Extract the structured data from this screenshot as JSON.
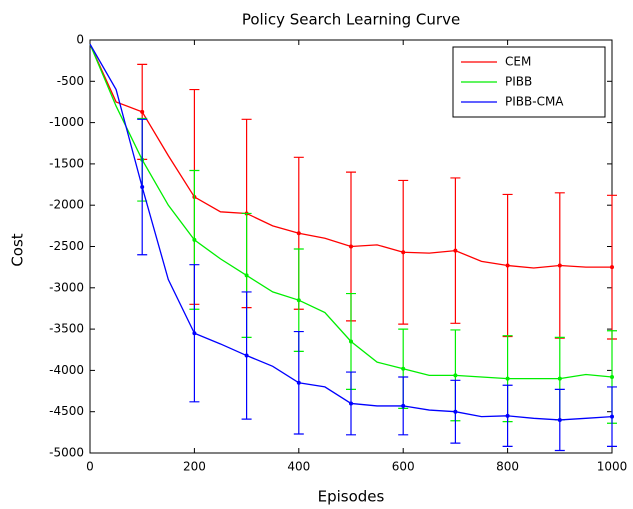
{
  "chart_data": {
    "type": "line",
    "title": "Policy Search Learning Curve",
    "x_label": "Episodes",
    "y_label": "Cost",
    "x": [
      0,
      50,
      100,
      150,
      200,
      250,
      300,
      350,
      400,
      450,
      500,
      550,
      600,
      650,
      700,
      750,
      800,
      850,
      900,
      950,
      1000
    ],
    "series": [
      {
        "name": "CEM",
        "color": "#ff0000",
        "values": [
          -50,
          -750,
          -870,
          -1400,
          -1900,
          -2080,
          -2100,
          -2250,
          -2340,
          -2400,
          -2500,
          -2480,
          -2570,
          -2580,
          -2550,
          -2680,
          -2730,
          -2760,
          -2730,
          -2750,
          -2750
        ],
        "errors": [
          null,
          null,
          575,
          null,
          1300,
          null,
          1140,
          null,
          920,
          null,
          900,
          null,
          870,
          null,
          880,
          null,
          860,
          null,
          880,
          null,
          870
        ]
      },
      {
        "name": "PIBB",
        "color": "#00ee00",
        "values": [
          -50,
          -800,
          -1450,
          -2000,
          -2420,
          -2650,
          -2850,
          -3050,
          -3150,
          -3300,
          -3650,
          -3900,
          -3980,
          -4060,
          -4060,
          -4080,
          -4100,
          -4100,
          -4100,
          -4050,
          -4080
        ],
        "errors": [
          null,
          null,
          500,
          null,
          840,
          null,
          750,
          null,
          620,
          null,
          580,
          null,
          480,
          null,
          550,
          null,
          520,
          null,
          500,
          null,
          560
        ]
      },
      {
        "name": "PIBB-CMA",
        "color": "#0000ff",
        "values": [
          -50,
          -600,
          -1780,
          -2900,
          -3550,
          -3680,
          -3820,
          -3950,
          -4150,
          -4200,
          -4400,
          -4430,
          -4430,
          -4480,
          -4500,
          -4560,
          -4550,
          -4580,
          -4600,
          -4580,
          -4560
        ],
        "errors": [
          null,
          null,
          820,
          null,
          830,
          null,
          770,
          null,
          620,
          null,
          380,
          null,
          350,
          null,
          380,
          null,
          370,
          null,
          370,
          null,
          360
        ]
      }
    ],
    "xlim": [
      0,
      1000
    ],
    "xticks": [
      0,
      200,
      400,
      600,
      800,
      1000
    ],
    "ylim": [
      -5000,
      0
    ],
    "yticks": [
      0,
      -500,
      -1000,
      -1500,
      -2000,
      -2500,
      -3000,
      -3500,
      -4000,
      -4500,
      -5000
    ],
    "legend": "upper right"
  }
}
